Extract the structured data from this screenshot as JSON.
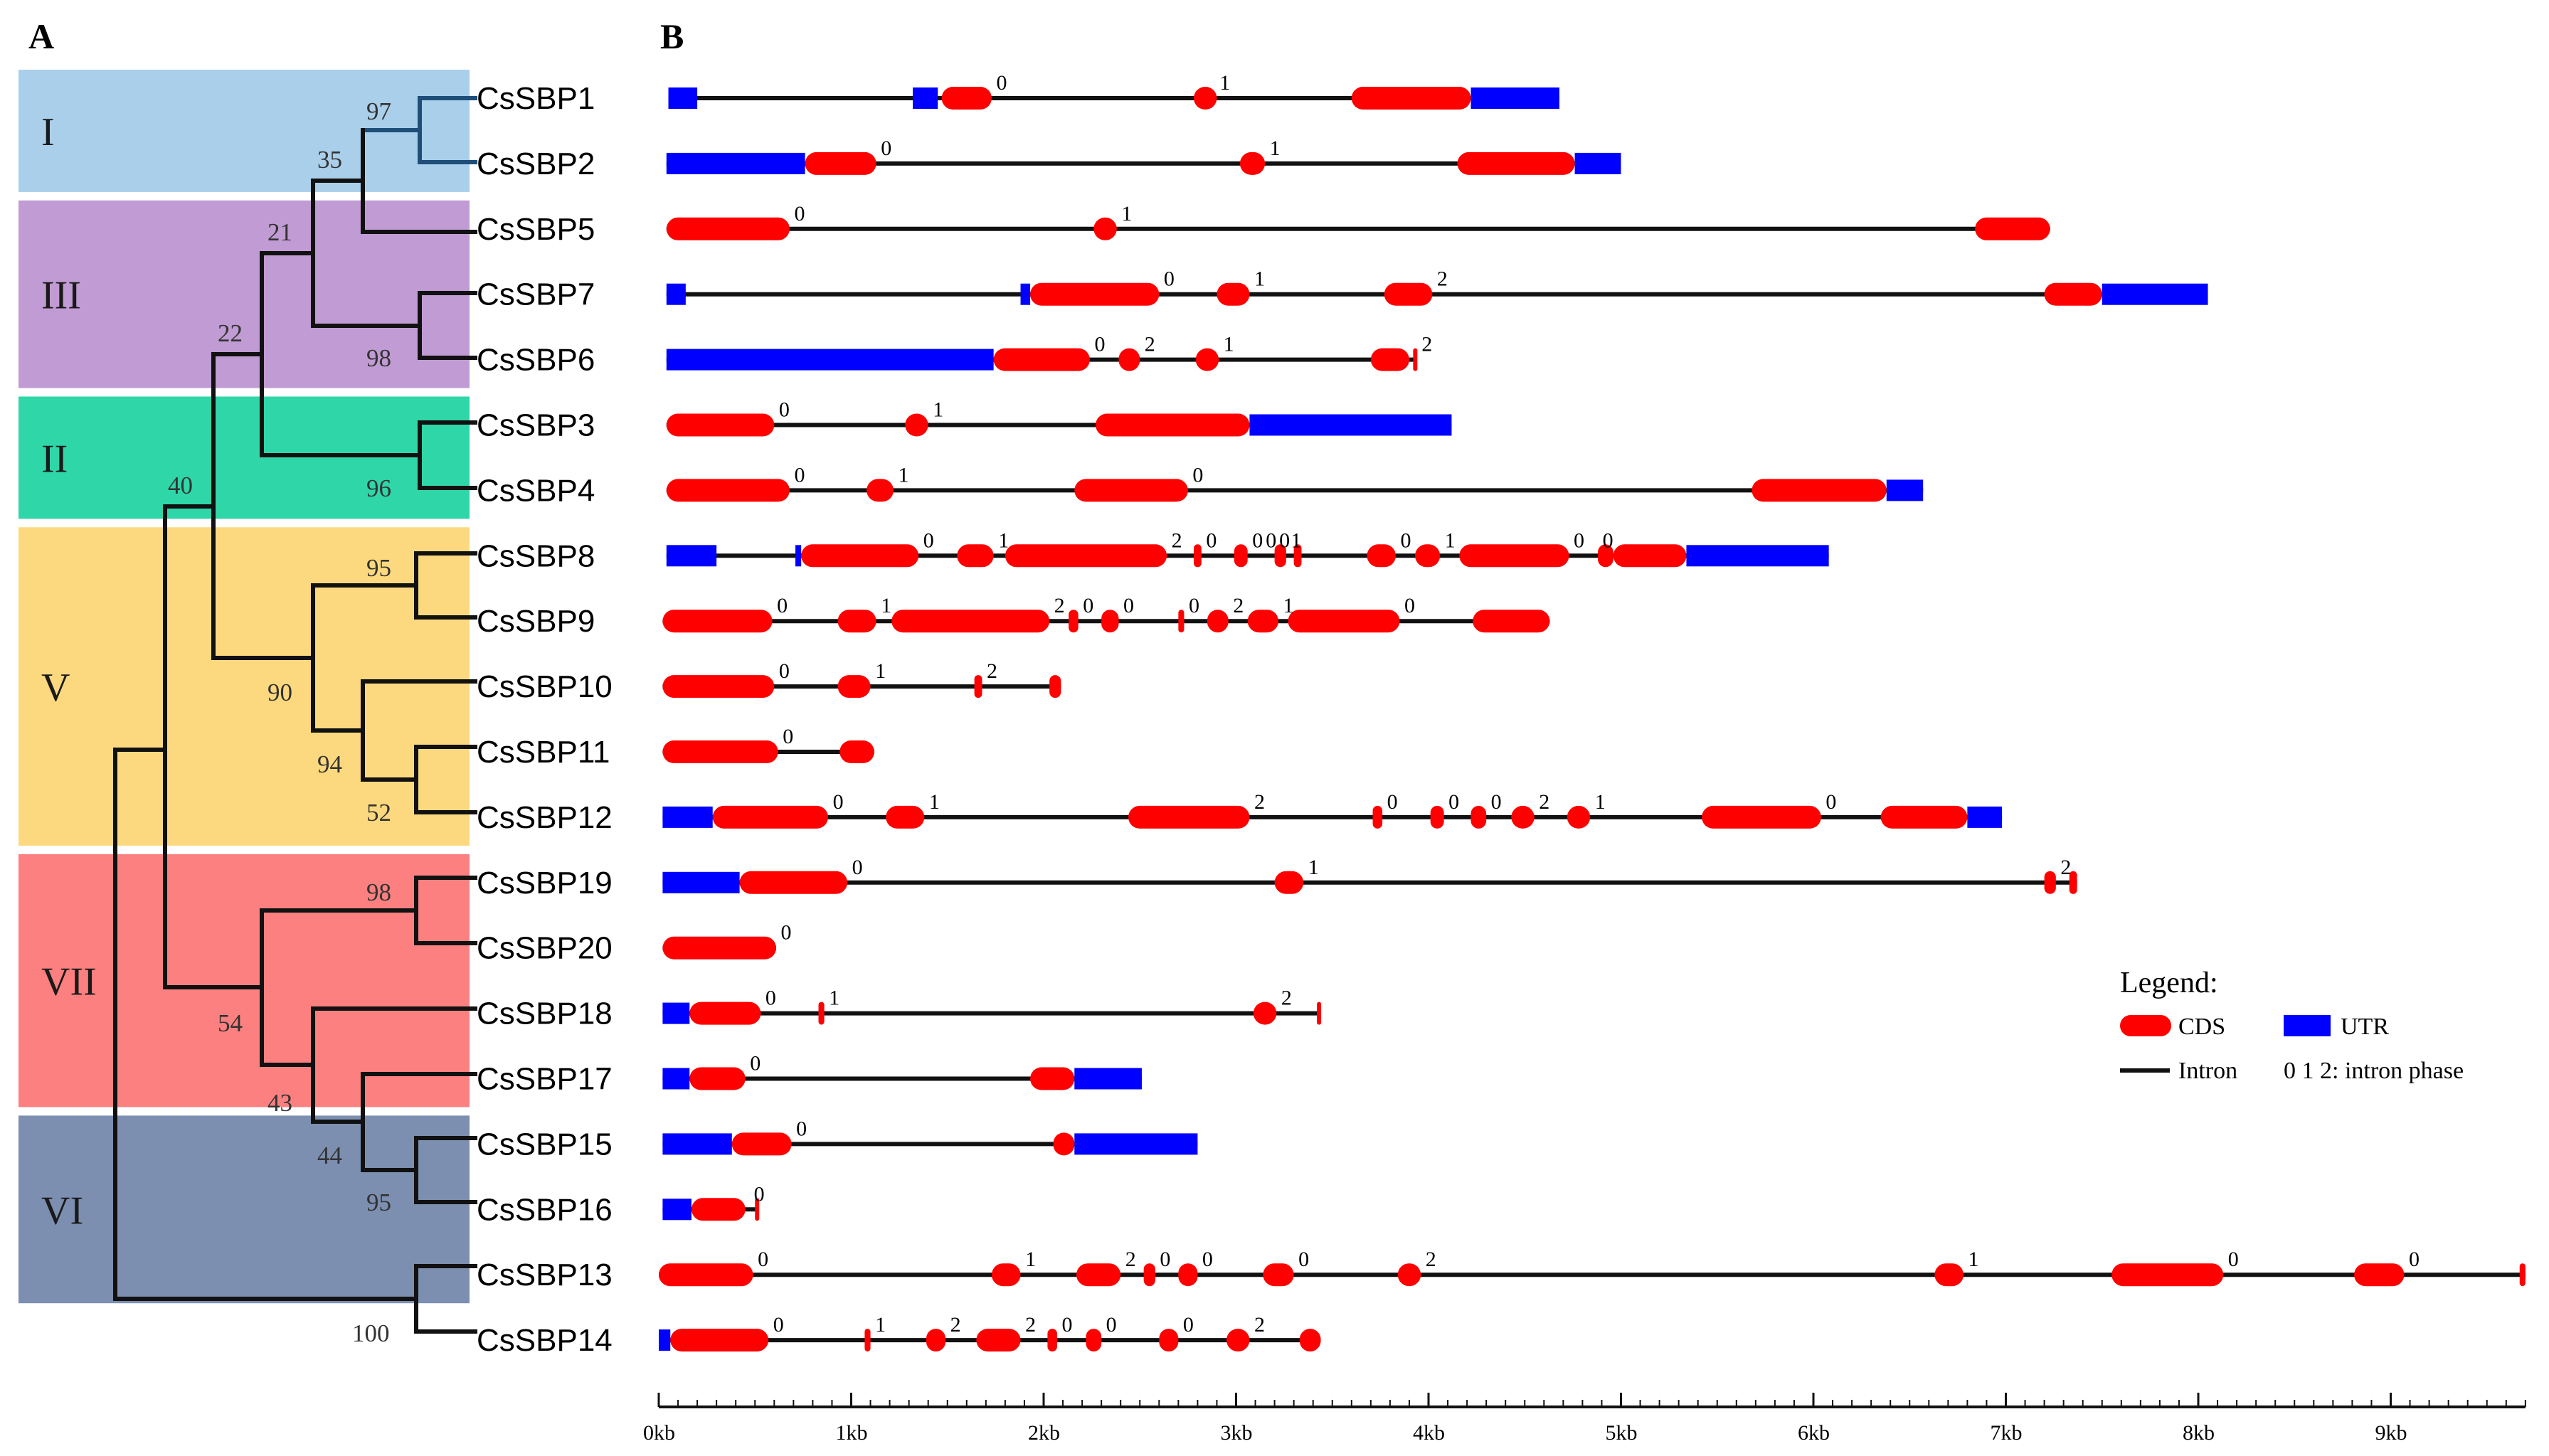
{
  "panels": {
    "a": "A",
    "b": "B"
  },
  "colors": {
    "cds": "#ff0000",
    "utr": "#0000ff",
    "intron": "#111111"
  },
  "groups": [
    {
      "id": "I",
      "label": "I",
      "color": "#a9cfea",
      "rows": [
        0,
        1
      ]
    },
    {
      "id": "III",
      "label": "III",
      "color": "#c19bd3",
      "rows": [
        2,
        4
      ]
    },
    {
      "id": "II",
      "label": "II",
      "color": "#2fd6a8",
      "rows": [
        5,
        6
      ]
    },
    {
      "id": "V",
      "label": "V",
      "color": "#fcd97e",
      "rows": [
        7,
        11
      ]
    },
    {
      "id": "VII",
      "label": "VII",
      "color": "#fc8080",
      "rows": [
        12,
        15
      ]
    },
    {
      "id": "VI",
      "label": "VI",
      "color": "#7c8fb0",
      "rows": [
        16,
        18
      ]
    }
  ],
  "bootstrap": [
    "97",
    "35",
    "21",
    "98",
    "22",
    "96",
    "40",
    "95",
    "90",
    "94",
    "52",
    "98",
    "54",
    "43",
    "44",
    "95",
    "100"
  ],
  "genes": [
    {
      "name": "CsSBP1",
      "start": 0.05,
      "end": 4.68,
      "utr": [
        [
          0.05,
          0.2
        ],
        [
          1.32,
          1.45
        ],
        [
          4.22,
          4.68
        ]
      ],
      "cds": [
        [
          1.47,
          1.73
        ],
        [
          2.78,
          2.9
        ],
        [
          3.6,
          4.22
        ]
      ],
      "phases": [
        {
          "pos": 1.78,
          "label": "0"
        },
        {
          "pos": 2.94,
          "label": "1"
        }
      ]
    },
    {
      "name": "CsSBP2",
      "start": 0.04,
      "end": 5.0,
      "utr": [
        [
          0.04,
          0.76
        ],
        [
          4.76,
          5.0
        ]
      ],
      "cds": [
        [
          0.76,
          1.13
        ],
        [
          3.02,
          3.15
        ],
        [
          4.15,
          4.76
        ]
      ],
      "phases": [
        {
          "pos": 1.18,
          "label": "0"
        },
        {
          "pos": 3.2,
          "label": "1"
        }
      ]
    },
    {
      "name": "CsSBP5",
      "start": 0.04,
      "end": 7.23,
      "utr": [],
      "cds": [
        [
          0.04,
          0.68
        ],
        [
          2.26,
          2.38
        ],
        [
          6.84,
          7.23
        ]
      ],
      "phases": [
        {
          "pos": 0.73,
          "label": "0"
        },
        {
          "pos": 2.43,
          "label": "1"
        }
      ]
    },
    {
      "name": "CsSBP7",
      "start": 0.04,
      "end": 8.05,
      "utr": [
        [
          0.04,
          0.14
        ],
        [
          1.88,
          1.93
        ],
        [
          7.5,
          8.05
        ]
      ],
      "cds": [
        [
          1.93,
          2.6
        ],
        [
          2.9,
          3.07
        ],
        [
          3.77,
          4.02
        ],
        [
          7.2,
          7.5
        ]
      ],
      "phases": [
        {
          "pos": 2.65,
          "label": "0"
        },
        {
          "pos": 3.12,
          "label": "1"
        },
        {
          "pos": 4.07,
          "label": "2"
        }
      ]
    },
    {
      "name": "CsSBP6",
      "start": 0.04,
      "end": 3.94,
      "utr": [
        [
          0.04,
          1.74
        ]
      ],
      "cds": [
        [
          1.74,
          2.24
        ],
        [
          2.39,
          2.5
        ],
        [
          2.79,
          2.91
        ],
        [
          3.7,
          3.9
        ],
        [
          3.92,
          3.94
        ]
      ],
      "phases": [
        {
          "pos": 2.29,
          "label": "0"
        },
        {
          "pos": 2.55,
          "label": "2"
        },
        {
          "pos": 2.96,
          "label": "1"
        },
        {
          "pos": 3.99,
          "label": "2"
        }
      ]
    },
    {
      "name": "CsSBP3",
      "start": 0.04,
      "end": 4.12,
      "utr": [
        [
          3.07,
          4.12
        ]
      ],
      "cds": [
        [
          0.04,
          0.6
        ],
        [
          1.28,
          1.4
        ],
        [
          2.27,
          3.07
        ]
      ],
      "phases": [
        {
          "pos": 0.65,
          "label": "0"
        },
        {
          "pos": 1.45,
          "label": "1"
        }
      ]
    },
    {
      "name": "CsSBP4",
      "start": 0.04,
      "end": 6.57,
      "utr": [
        [
          6.38,
          6.57
        ]
      ],
      "cds": [
        [
          0.04,
          0.68
        ],
        [
          1.08,
          1.22
        ],
        [
          2.16,
          2.75
        ],
        [
          5.68,
          6.38
        ]
      ],
      "phases": [
        {
          "pos": 0.73,
          "label": "0"
        },
        {
          "pos": 1.27,
          "label": "1"
        },
        {
          "pos": 2.8,
          "label": "0"
        }
      ]
    },
    {
      "name": "CsSBP8",
      "start": 0.04,
      "end": 6.08,
      "utr": [
        [
          0.04,
          0.3
        ],
        [
          0.71,
          0.74
        ],
        [
          5.34,
          6.08
        ]
      ],
      "cds": [
        [
          0.74,
          1.35
        ],
        [
          1.55,
          1.74
        ],
        [
          1.8,
          2.64
        ],
        [
          2.78,
          2.82
        ],
        [
          2.99,
          3.06
        ],
        [
          3.2,
          3.26
        ],
        [
          3.3,
          3.34
        ],
        [
          3.68,
          3.83
        ],
        [
          3.93,
          4.06
        ],
        [
          4.16,
          4.73
        ],
        [
          4.88,
          4.96
        ],
        [
          4.96,
          5.34
        ]
      ],
      "phases": [
        {
          "pos": 1.4,
          "label": "0"
        },
        {
          "pos": 1.79,
          "label": "1"
        },
        {
          "pos": 2.69,
          "label": "2"
        },
        {
          "pos": 2.87,
          "label": "0"
        },
        {
          "pos": 3.11,
          "label": "0"
        },
        {
          "pos": 3.18,
          "label": "0"
        },
        {
          "pos": 3.25,
          "label": "0"
        },
        {
          "pos": 3.31,
          "label": "1"
        },
        {
          "pos": 3.88,
          "label": "0"
        },
        {
          "pos": 4.11,
          "label": "1"
        },
        {
          "pos": 4.78,
          "label": "0"
        },
        {
          "pos": 4.93,
          "label": "0"
        }
      ]
    },
    {
      "name": "CsSBP9",
      "start": 0.02,
      "end": 4.63,
      "utr": [],
      "cds": [
        [
          0.02,
          0.59
        ],
        [
          0.93,
          1.13
        ],
        [
          1.21,
          2.03
        ],
        [
          2.13,
          2.18
        ],
        [
          2.3,
          2.39
        ],
        [
          2.7,
          2.73
        ],
        [
          2.85,
          2.96
        ],
        [
          3.06,
          3.22
        ],
        [
          3.27,
          3.85
        ],
        [
          4.23,
          4.63
        ]
      ],
      "phases": [
        {
          "pos": 0.64,
          "label": "0"
        },
        {
          "pos": 1.18,
          "label": "1"
        },
        {
          "pos": 2.08,
          "label": "2"
        },
        {
          "pos": 2.23,
          "label": "0"
        },
        {
          "pos": 2.44,
          "label": "0"
        },
        {
          "pos": 2.78,
          "label": "0"
        },
        {
          "pos": 3.01,
          "label": "2"
        },
        {
          "pos": 3.27,
          "label": "1"
        },
        {
          "pos": 3.9,
          "label": "0"
        }
      ]
    },
    {
      "name": "CsSBP10",
      "start": 0.02,
      "end": 2.09,
      "utr": [],
      "cds": [
        [
          0.02,
          0.6
        ],
        [
          0.93,
          1.1
        ],
        [
          1.64,
          1.68
        ],
        [
          2.03,
          2.09
        ]
      ],
      "phases": [
        {
          "pos": 0.65,
          "label": "0"
        },
        {
          "pos": 1.15,
          "label": "1"
        },
        {
          "pos": 1.73,
          "label": "2"
        }
      ]
    },
    {
      "name": "CsSBP11",
      "start": 0.02,
      "end": 1.12,
      "utr": [],
      "cds": [
        [
          0.02,
          0.62
        ],
        [
          0.94,
          1.12
        ]
      ],
      "phases": [
        {
          "pos": 0.67,
          "label": "0"
        }
      ]
    },
    {
      "name": "CsSBP12",
      "start": 0.02,
      "end": 6.98,
      "utr": [
        [
          0.02,
          0.28
        ],
        [
          6.8,
          6.98
        ]
      ],
      "cds": [
        [
          0.28,
          0.88
        ],
        [
          1.18,
          1.38
        ],
        [
          2.44,
          3.07
        ],
        [
          3.71,
          3.76
        ],
        [
          4.01,
          4.08
        ],
        [
          4.22,
          4.3
        ],
        [
          4.43,
          4.55
        ],
        [
          4.72,
          4.84
        ],
        [
          5.42,
          6.04
        ],
        [
          6.35,
          6.8
        ]
      ],
      "phases": [
        {
          "pos": 0.93,
          "label": "0"
        },
        {
          "pos": 1.43,
          "label": "1"
        },
        {
          "pos": 3.12,
          "label": "2"
        },
        {
          "pos": 3.81,
          "label": "0"
        },
        {
          "pos": 4.13,
          "label": "0"
        },
        {
          "pos": 4.35,
          "label": "0"
        },
        {
          "pos": 4.6,
          "label": "2"
        },
        {
          "pos": 4.89,
          "label": "1"
        },
        {
          "pos": 6.09,
          "label": "0"
        }
      ]
    },
    {
      "name": "CsSBP19",
      "start": 0.02,
      "end": 7.37,
      "utr": [
        [
          0.02,
          0.42
        ]
      ],
      "cds": [
        [
          0.42,
          0.98
        ],
        [
          3.2,
          3.35
        ],
        [
          7.2,
          7.26
        ],
        [
          7.33,
          7.37
        ]
      ],
      "phases": [
        {
          "pos": 1.03,
          "label": "0"
        },
        {
          "pos": 3.4,
          "label": "1"
        },
        {
          "pos": 7.31,
          "label": "2"
        }
      ]
    },
    {
      "name": "CsSBP20",
      "start": 0.02,
      "end": 0.61,
      "utr": [],
      "cds": [
        [
          0.02,
          0.61
        ]
      ],
      "phases": [
        {
          "pos": 0.66,
          "label": "0"
        }
      ]
    },
    {
      "name": "CsSBP18",
      "start": 0.02,
      "end": 3.44,
      "utr": [
        [
          0.02,
          0.16
        ]
      ],
      "cds": [
        [
          0.16,
          0.53
        ],
        [
          0.83,
          0.86
        ],
        [
          3.09,
          3.21
        ],
        [
          3.42,
          3.44
        ]
      ],
      "phases": [
        {
          "pos": 0.58,
          "label": "0"
        },
        {
          "pos": 0.91,
          "label": "1"
        },
        {
          "pos": 3.26,
          "label": "2"
        }
      ]
    },
    {
      "name": "CsSBP17",
      "start": 0.02,
      "end": 2.51,
      "utr": [
        [
          0.02,
          0.16
        ],
        [
          2.16,
          2.51
        ]
      ],
      "cds": [
        [
          0.16,
          0.45
        ],
        [
          1.93,
          2.16
        ]
      ],
      "phases": [
        {
          "pos": 0.5,
          "label": "0"
        }
      ]
    },
    {
      "name": "CsSBP15",
      "start": 0.02,
      "end": 2.8,
      "utr": [
        [
          0.02,
          0.38
        ],
        [
          2.16,
          2.8
        ]
      ],
      "cds": [
        [
          0.38,
          0.69
        ],
        [
          2.05,
          2.16
        ]
      ],
      "phases": [
        {
          "pos": 0.74,
          "label": "0"
        }
      ]
    },
    {
      "name": "CsSBP16",
      "start": 0.02,
      "end": 0.52,
      "utr": [
        [
          0.02,
          0.17
        ]
      ],
      "cds": [
        [
          0.17,
          0.45
        ],
        [
          0.5,
          0.52
        ]
      ],
      "phases": [
        {
          "pos": 0.52,
          "label": "0"
        }
      ]
    },
    {
      "name": "CsSBP13",
      "start": 0.0,
      "end": 9.7,
      "utr": [],
      "cds": [
        [
          0.0,
          0.49
        ],
        [
          1.73,
          1.88
        ],
        [
          2.17,
          2.4
        ],
        [
          2.52,
          2.58
        ],
        [
          2.7,
          2.8
        ],
        [
          3.14,
          3.3
        ],
        [
          3.84,
          3.96
        ],
        [
          6.63,
          6.78
        ],
        [
          7.55,
          8.13
        ],
        [
          8.81,
          9.07
        ],
        [
          9.67,
          9.7
        ]
      ],
      "phases": [
        {
          "pos": 0.54,
          "label": "0"
        },
        {
          "pos": 1.93,
          "label": "1"
        },
        {
          "pos": 2.45,
          "label": "2"
        },
        {
          "pos": 2.63,
          "label": "0"
        },
        {
          "pos": 2.85,
          "label": "0"
        },
        {
          "pos": 3.35,
          "label": "0"
        },
        {
          "pos": 4.01,
          "label": "2"
        },
        {
          "pos": 6.83,
          "label": "1"
        },
        {
          "pos": 8.18,
          "label": "0"
        },
        {
          "pos": 9.12,
          "label": "0"
        }
      ]
    },
    {
      "name": "CsSBP14",
      "start": 0.0,
      "end": 3.44,
      "utr": [
        [
          0.0,
          0.06
        ]
      ],
      "cds": [
        [
          0.06,
          0.57
        ],
        [
          1.07,
          1.1
        ],
        [
          1.39,
          1.49
        ],
        [
          1.65,
          1.88
        ],
        [
          2.02,
          2.07
        ],
        [
          2.22,
          2.3
        ],
        [
          2.6,
          2.7
        ],
        [
          2.95,
          3.07
        ],
        [
          3.33,
          3.44
        ]
      ],
      "phases": [
        {
          "pos": 0.62,
          "label": "0"
        },
        {
          "pos": 1.15,
          "label": "1"
        },
        {
          "pos": 1.54,
          "label": "2"
        },
        {
          "pos": 1.93,
          "label": "2"
        },
        {
          "pos": 2.12,
          "label": "0"
        },
        {
          "pos": 2.35,
          "label": "0"
        },
        {
          "pos": 2.75,
          "label": "0"
        },
        {
          "pos": 3.12,
          "label": "2"
        }
      ]
    }
  ],
  "axis": {
    "max_kb": 9.7,
    "ticks": [
      "0kb",
      "1kb",
      "2kb",
      "3kb",
      "4kb",
      "5kb",
      "6kb",
      "7kb",
      "8kb",
      "9kb"
    ]
  },
  "legend": {
    "title": "Legend:",
    "cds": "CDS",
    "utr": "UTR",
    "intron": "Intron",
    "phase_note": "0 1 2: intron phase"
  }
}
